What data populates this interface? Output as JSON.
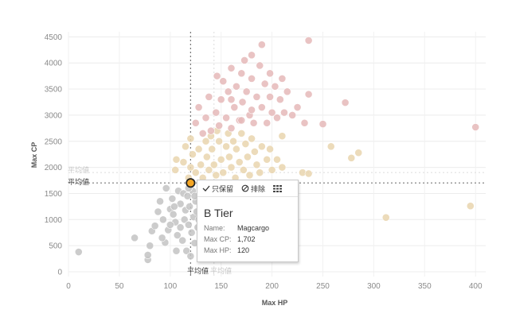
{
  "chart_data": {
    "type": "scatter",
    "xlabel": "Max HP",
    "ylabel": "Max CP",
    "xlim": [
      0,
      410
    ],
    "ylim": [
      0,
      4600
    ],
    "x_ticks": [
      0,
      50,
      100,
      150,
      200,
      250,
      300,
      350,
      400
    ],
    "y_ticks": [
      0,
      500,
      1000,
      1500,
      2000,
      2500,
      3000,
      3500,
      4000,
      4500
    ],
    "reference_lines": {
      "avg_hp": 120,
      "avg_cp": 1702,
      "avg_label": "平均値"
    },
    "colors": {
      "gray": "#c3c3c3",
      "tan": "#e9d5ae",
      "pink": "#e5b8b8",
      "highlight": "#f5a623",
      "highlight_ring": "#222222"
    },
    "series": [
      {
        "color_key": "gray",
        "points": [
          [
            10,
            380
          ],
          [
            65,
            650
          ],
          [
            78,
            230
          ],
          [
            78,
            320
          ],
          [
            80,
            500
          ],
          [
            82,
            780
          ],
          [
            85,
            880
          ],
          [
            90,
            1350
          ],
          [
            93,
            1000
          ],
          [
            95,
            560
          ],
          [
            98,
            800
          ],
          [
            100,
            1200
          ],
          [
            102,
            1400
          ],
          [
            103,
            1100
          ],
          [
            105,
            950
          ],
          [
            107,
            700
          ],
          [
            108,
            1550
          ],
          [
            110,
            850
          ],
          [
            110,
            1300
          ],
          [
            112,
            600
          ],
          [
            113,
            1500
          ],
          [
            114,
            1000
          ],
          [
            115,
            1180
          ],
          [
            116,
            400
          ],
          [
            117,
            1450
          ],
          [
            118,
            900
          ],
          [
            119,
            1250
          ],
          [
            120,
            300
          ],
          [
            121,
            750
          ],
          [
            122,
            1550
          ],
          [
            123,
            1050
          ],
          [
            124,
            550
          ],
          [
            125,
            1350
          ],
          [
            126,
            1150
          ],
          [
            127,
            850
          ],
          [
            128,
            1000
          ],
          [
            130,
            650
          ],
          [
            131,
            1200
          ],
          [
            132,
            450
          ],
          [
            133,
            1300
          ],
          [
            134,
            950
          ],
          [
            136,
            1100
          ],
          [
            138,
            1450
          ],
          [
            140,
            600
          ],
          [
            142,
            1000
          ],
          [
            144,
            1250
          ],
          [
            146,
            850
          ],
          [
            150,
            1050
          ],
          [
            88,
            1150
          ],
          [
            96,
            1600
          ],
          [
            104,
            1250
          ],
          [
            106,
            400
          ],
          [
            92,
            650
          ],
          [
            118,
            1600
          ],
          [
            124,
            1450
          ],
          [
            100,
            900
          ],
          [
            135,
            750
          ],
          [
            130,
            1450
          ]
        ]
      },
      {
        "color_key": "tan",
        "points": [
          [
            105,
            1950
          ],
          [
            106,
            2150
          ],
          [
            113,
            2100
          ],
          [
            115,
            2400
          ],
          [
            118,
            1800
          ],
          [
            120,
            2000
          ],
          [
            120,
            2550
          ],
          [
            122,
            2250
          ],
          [
            125,
            1900
          ],
          [
            128,
            2350
          ],
          [
            130,
            2050
          ],
          [
            132,
            1800
          ],
          [
            135,
            2500
          ],
          [
            136,
            2200
          ],
          [
            138,
            1950
          ],
          [
            140,
            2600
          ],
          [
            141,
            2350
          ],
          [
            143,
            2050
          ],
          [
            145,
            1850
          ],
          [
            146,
            2700
          ],
          [
            148,
            2500
          ],
          [
            150,
            2150
          ],
          [
            152,
            1900
          ],
          [
            155,
            2400
          ],
          [
            157,
            2650
          ],
          [
            158,
            2200
          ],
          [
            160,
            2000
          ],
          [
            162,
            2500
          ],
          [
            164,
            1800
          ],
          [
            165,
            2350
          ],
          [
            168,
            2100
          ],
          [
            170,
            2650
          ],
          [
            172,
            1950
          ],
          [
            174,
            2450
          ],
          [
            176,
            2200
          ],
          [
            178,
            1850
          ],
          [
            180,
            2550
          ],
          [
            183,
            2300
          ],
          [
            185,
            2050
          ],
          [
            188,
            1900
          ],
          [
            190,
            2400
          ],
          [
            195,
            2150
          ],
          [
            198,
            2350
          ],
          [
            200,
            1950
          ],
          [
            205,
            2150
          ],
          [
            210,
            2000
          ],
          [
            230,
            1900
          ],
          [
            236,
            1880
          ],
          [
            258,
            2400
          ],
          [
            278,
            2180
          ],
          [
            285,
            2280
          ],
          [
            210,
            2600
          ]
        ]
      },
      {
        "color_key": "pink",
        "points": [
          [
            125,
            2850
          ],
          [
            128,
            3150
          ],
          [
            132,
            2650
          ],
          [
            135,
            2950
          ],
          [
            138,
            3350
          ],
          [
            140,
            2700
          ],
          [
            145,
            3050
          ],
          [
            146,
            3750
          ],
          [
            148,
            2800
          ],
          [
            150,
            3300
          ],
          [
            152,
            3650
          ],
          [
            155,
            2950
          ],
          [
            157,
            3450
          ],
          [
            160,
            2750
          ],
          [
            160,
            3900
          ],
          [
            163,
            3150
          ],
          [
            165,
            3550
          ],
          [
            168,
            2900
          ],
          [
            170,
            3800
          ],
          [
            171,
            3250
          ],
          [
            173,
            4050
          ],
          [
            175,
            3450
          ],
          [
            178,
            3000
          ],
          [
            180,
            3700
          ],
          [
            180,
            4150
          ],
          [
            182,
            2850
          ],
          [
            185,
            3350
          ],
          [
            188,
            3950
          ],
          [
            190,
            3150
          ],
          [
            190,
            4350
          ],
          [
            193,
            3600
          ],
          [
            195,
            2850
          ],
          [
            198,
            3350
          ],
          [
            198,
            3800
          ],
          [
            200,
            3050
          ],
          [
            203,
            3550
          ],
          [
            205,
            2950
          ],
          [
            208,
            3300
          ],
          [
            210,
            3700
          ],
          [
            212,
            3050
          ],
          [
            215,
            3450
          ],
          [
            220,
            3000
          ],
          [
            225,
            3150
          ],
          [
            232,
            2850
          ],
          [
            236,
            3400
          ],
          [
            236,
            4430
          ],
          [
            250,
            2830
          ],
          [
            272,
            3240
          ],
          [
            400,
            2770
          ],
          [
            170,
            2900
          ],
          [
            180,
            3100
          ],
          [
            160,
            3300
          ]
        ]
      },
      {
        "color_key": "tan",
        "points": [
          [
            312,
            1040
          ],
          [
            395,
            1260
          ]
        ]
      }
    ],
    "highlight": {
      "x": 120,
      "y": 1702
    }
  },
  "tooltip": {
    "actions": [
      {
        "icon": "check-icon",
        "label": "只保留"
      },
      {
        "icon": "exclude-icon",
        "label": "排除"
      },
      {
        "icon": "view-data-icon",
        "label": ""
      }
    ],
    "title": "B Tier",
    "rows": [
      {
        "key": "Name:",
        "value": "Magcargo"
      },
      {
        "key": "Max CP:",
        "value": "1,702"
      },
      {
        "key": "Max HP:",
        "value": "120"
      }
    ]
  }
}
